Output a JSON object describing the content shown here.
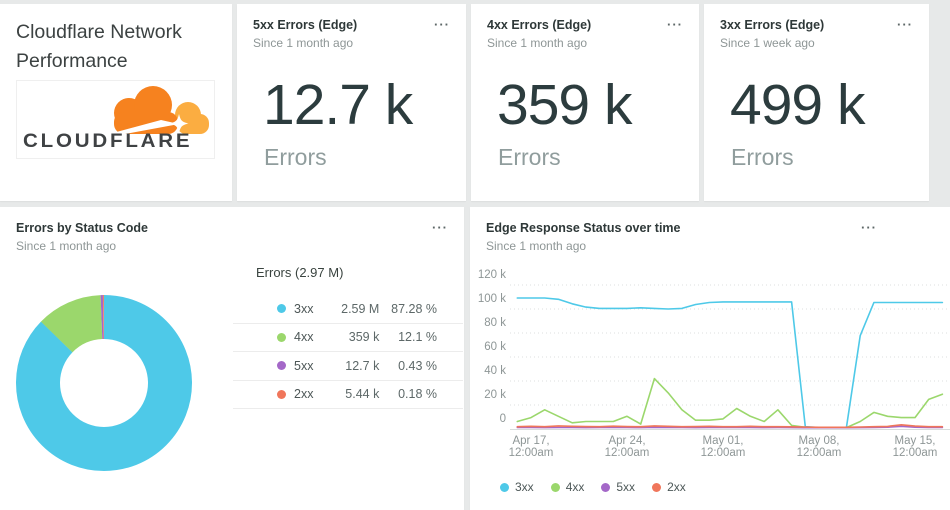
{
  "ui": {
    "menu_glyph": "···"
  },
  "header_card": {
    "title": "Cloudflare Network Performance",
    "logo_text": "CLOUDFLARE"
  },
  "kpi_cards": [
    {
      "title": "5xx Errors (Edge)",
      "subtitle": "Since 1 month ago",
      "value": "12.7 k",
      "unit_label": "Errors"
    },
    {
      "title": "4xx Errors (Edge)",
      "subtitle": "Since 1 month ago",
      "value": "359 k",
      "unit_label": "Errors"
    },
    {
      "title": "3xx Errors (Edge)",
      "subtitle": "Since 1 week ago",
      "value": "499 k",
      "unit_label": "Errors"
    }
  ],
  "pie_card": {
    "title": "Errors by Status Code",
    "subtitle": "Since 1 month ago"
  },
  "ts_card": {
    "title": "Edge Response Status over time",
    "subtitle": "Since 1 month ago"
  },
  "chart_data": [
    {
      "type": "pie",
      "title": "Errors by Status Code",
      "timeframe": "Since 1 month ago",
      "total_label": "Errors (2.97 M)",
      "legend_position": "right",
      "donut": true,
      "slices": [
        {
          "label": "3xx",
          "value": "2.59 M",
          "percent": 87.28,
          "percent_label": "87.28 %",
          "color": "#4ec9e8"
        },
        {
          "label": "4xx",
          "value": "359 k",
          "percent": 12.1,
          "percent_label": "12.1 %",
          "color": "#9bd76c"
        },
        {
          "label": "5xx",
          "value": "12.7 k",
          "percent": 0.43,
          "percent_label": "0.43 %",
          "color": "#a468c8"
        },
        {
          "label": "2xx",
          "value": "5.44 k",
          "percent": 0.18,
          "percent_label": "0.18 %",
          "color": "#f0765b"
        }
      ]
    },
    {
      "type": "line",
      "title": "Edge Response Status over time",
      "timeframe": "Since 1 month ago",
      "unit": "k",
      "ylim": [
        0,
        120
      ],
      "grid": "dashed-horizontal",
      "legend_position": "bottom",
      "y_ticks": [
        "120 k",
        "100 k",
        "80 k",
        "60 k",
        "40 k",
        "20 k",
        "0"
      ],
      "x_ticks": [
        {
          "l1": "Apr 17,",
          "l2": "12:00am"
        },
        {
          "l1": "Apr 24,",
          "l2": "12:00am"
        },
        {
          "l1": "May 01,",
          "l2": "12:00am"
        },
        {
          "l1": "May 08,",
          "l2": "12:00am"
        },
        {
          "l1": "May 15,",
          "l2": "12:00am"
        }
      ],
      "series": [
        {
          "name": "3xx",
          "color": "#4ec9e8",
          "values": [
            100,
            100,
            100,
            99,
            95.5,
            93,
            92,
            92,
            92,
            92.5,
            92,
            91.5,
            92,
            95,
            96.5,
            97,
            97,
            97,
            97,
            97,
            97,
            1,
            0.4,
            0.3,
            0.3,
            71,
            96.5,
            96.5,
            96.5,
            96.5,
            96.5,
            96.5
          ]
        },
        {
          "name": "4xx",
          "color": "#9bd76c",
          "values": [
            5,
            8,
            14,
            9,
            4,
            5,
            5,
            5,
            9,
            3,
            38,
            27,
            14,
            6,
            6,
            7,
            15,
            9,
            5,
            14,
            2,
            0.5,
            0.3,
            0.3,
            0.3,
            5,
            12,
            9,
            8,
            8,
            22,
            26
          ]
        },
        {
          "name": "5xx",
          "color": "#a468c8",
          "values": [
            0.4,
            0.4,
            0.3,
            0.4,
            0.4,
            0.3,
            0.4,
            0.4,
            0.4,
            0.3,
            0.5,
            0.4,
            0.4,
            0.3,
            0.4,
            0.4,
            0.4,
            0.4,
            0.3,
            0.4,
            0.3,
            0.2,
            0.2,
            0.2,
            0.2,
            0.3,
            0.4,
            0.6,
            1.3,
            0.6,
            0.4,
            0.4
          ]
        },
        {
          "name": "2xx",
          "color": "#f0765b",
          "values": [
            1,
            1.3,
            1,
            1.6,
            1.3,
            1.1,
            1,
            1.4,
            1.1,
            1,
            1.6,
            1.3,
            1,
            1.1,
            1.3,
            1,
            1,
            1.3,
            1,
            1,
            0.9,
            0.7,
            0.5,
            0.5,
            0.5,
            0.8,
            1,
            1.2,
            2.5,
            1.5,
            1,
            1
          ]
        }
      ]
    }
  ]
}
